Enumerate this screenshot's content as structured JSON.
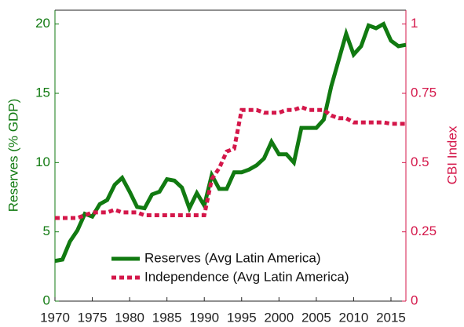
{
  "chart_data": {
    "type": "line",
    "x": [
      1970,
      1971,
      1972,
      1973,
      1974,
      1975,
      1976,
      1977,
      1978,
      1979,
      1980,
      1981,
      1982,
      1983,
      1984,
      1985,
      1986,
      1987,
      1988,
      1989,
      1990,
      1991,
      1992,
      1993,
      1994,
      1995,
      1996,
      1997,
      1998,
      1999,
      2000,
      2001,
      2002,
      2003,
      2004,
      2005,
      2006,
      2007,
      2008,
      2009,
      2010,
      2011,
      2012,
      2013,
      2014,
      2015,
      2016,
      2017
    ],
    "xlim": [
      1970,
      2017
    ],
    "xticks": [
      1970,
      1975,
      1980,
      1985,
      1990,
      1995,
      2000,
      2005,
      2010,
      2015
    ],
    "ylabel": "Reserves (% GDP)",
    "ylim": [
      0,
      21
    ],
    "yticks": [
      0,
      5,
      10,
      15,
      20
    ],
    "ycolor": "#117a11",
    "y2label": "CBI Index",
    "y2lim": [
      0,
      1.05
    ],
    "y2ticks": [
      0,
      0.25,
      0.5,
      0.75,
      1
    ],
    "y2color": "#d4174a",
    "legend": "lower right",
    "series": [
      {
        "name": "Reserves (Avg Latin America)",
        "color": "#117a11",
        "linestyle": "solid",
        "axis": "y",
        "values": [
          2.9,
          3.0,
          4.3,
          5.1,
          6.3,
          6.1,
          7.0,
          7.3,
          8.4,
          8.9,
          7.9,
          6.8,
          6.7,
          7.7,
          7.9,
          8.8,
          8.7,
          8.2,
          6.7,
          7.8,
          6.9,
          9.1,
          8.1,
          8.1,
          9.3,
          9.3,
          9.5,
          9.8,
          10.3,
          11.5,
          10.6,
          10.6,
          10.0,
          12.5,
          12.5,
          12.5,
          13.1,
          15.5,
          17.4,
          19.3,
          17.8,
          18.4,
          19.9,
          19.7,
          20.0,
          18.8,
          18.4,
          18.5
        ]
      },
      {
        "name": "Independence (Avg Latin America)",
        "color": "#d4174a",
        "linestyle": "dotted",
        "axis": "y2",
        "values": [
          0.3,
          0.3,
          0.3,
          0.3,
          0.31,
          0.32,
          0.32,
          0.32,
          0.33,
          0.32,
          0.32,
          0.32,
          0.31,
          0.31,
          0.31,
          0.31,
          0.31,
          0.31,
          0.31,
          0.31,
          0.31,
          0.44,
          0.48,
          0.54,
          0.55,
          0.69,
          0.69,
          0.69,
          0.68,
          0.68,
          0.68,
          0.69,
          0.69,
          0.7,
          0.69,
          0.69,
          0.69,
          0.67,
          0.66,
          0.66,
          0.645,
          0.645,
          0.645,
          0.645,
          0.645,
          0.64,
          0.64,
          0.64
        ]
      }
    ]
  }
}
